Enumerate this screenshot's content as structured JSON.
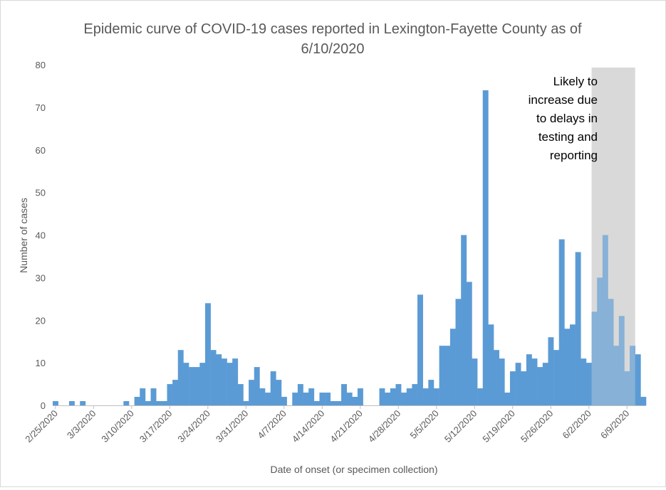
{
  "chart_data": {
    "type": "bar",
    "title": "Epidemic curve of COVID-19 cases reported in Lexington-Fayette County as of 6/10/2020",
    "title_lines": [
      "Epidemic curve of COVID-19 cases reported in Lexington-Fayette County as of",
      "6/10/2020"
    ],
    "xlabel": "Date of onset (or specimen collection)",
    "ylabel": "Number of cases",
    "ylim": [
      0,
      80
    ],
    "yticks": [
      0,
      10,
      20,
      30,
      40,
      50,
      60,
      70,
      80
    ],
    "start_date": "2/25/2020",
    "x_tick_labels": [
      "2/25/2020",
      "3/3/2020",
      "3/10/2020",
      "3/17/2020",
      "3/24/2020",
      "3/31/2020",
      "4/7/2020",
      "4/14/2020",
      "4/21/2020",
      "4/28/2020",
      "5/5/2020",
      "5/12/2020",
      "5/19/2020",
      "5/26/2020",
      "6/2/2020",
      "6/9/2020"
    ],
    "values": [
      1,
      0,
      0,
      1,
      0,
      1,
      0,
      0,
      0,
      0,
      0,
      0,
      0,
      1,
      0,
      2,
      4,
      1,
      4,
      1,
      1,
      5,
      6,
      13,
      10,
      9,
      9,
      10,
      24,
      13,
      12,
      11,
      10,
      11,
      5,
      1,
      6,
      9,
      4,
      3,
      8,
      6,
      2,
      0,
      3,
      5,
      3,
      4,
      1,
      3,
      3,
      1,
      1,
      5,
      3,
      2,
      4,
      0,
      0,
      0,
      4,
      3,
      4,
      5,
      3,
      4,
      5,
      26,
      4,
      6,
      4,
      14,
      14,
      18,
      25,
      40,
      29,
      11,
      4,
      74,
      19,
      13,
      11,
      3,
      8,
      10,
      8,
      12,
      11,
      9,
      10,
      16,
      13,
      39,
      18,
      19,
      36,
      11,
      10,
      22,
      30,
      40,
      25,
      14,
      21,
      8,
      14,
      12,
      2
    ],
    "bar_color": "#5b9bd5",
    "shaded_region": {
      "from_date": "6/3/2020",
      "to_date": "6/10/2020",
      "color": "#d9d9d9",
      "note_lines": [
        "Likely to",
        "increase due",
        "to delays in",
        "testing and",
        "reporting"
      ]
    },
    "grid": false,
    "legend": "none"
  }
}
